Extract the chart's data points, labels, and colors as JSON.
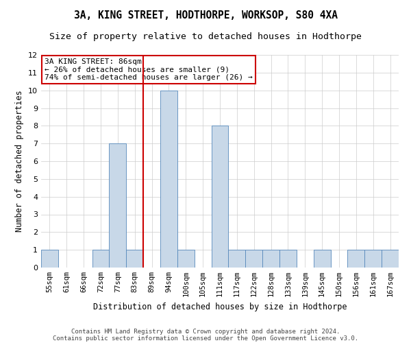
{
  "title": "3A, KING STREET, HODTHORPE, WORKSOP, S80 4XA",
  "subtitle": "Size of property relative to detached houses in Hodthorpe",
  "xlabel": "Distribution of detached houses by size in Hodthorpe",
  "ylabel": "Number of detached properties",
  "categories": [
    "55sqm",
    "61sqm",
    "66sqm",
    "72sqm",
    "77sqm",
    "83sqm",
    "89sqm",
    "94sqm",
    "100sqm",
    "105sqm",
    "111sqm",
    "117sqm",
    "122sqm",
    "128sqm",
    "133sqm",
    "139sqm",
    "145sqm",
    "150sqm",
    "156sqm",
    "161sqm",
    "167sqm"
  ],
  "values": [
    1,
    0,
    0,
    1,
    7,
    1,
    0,
    10,
    1,
    0,
    8,
    1,
    1,
    1,
    1,
    0,
    1,
    0,
    1,
    1,
    1
  ],
  "bar_color": "#c8d8e8",
  "bar_edge_color": "#5588bb",
  "ylim": [
    0,
    12
  ],
  "yticks": [
    0,
    1,
    2,
    3,
    4,
    5,
    6,
    7,
    8,
    9,
    10,
    11,
    12
  ],
  "annotation_text": "3A KING STREET: 86sqm\n← 26% of detached houses are smaller (9)\n74% of semi-detached houses are larger (26) →",
  "annotation_box_color": "#ffffff",
  "annotation_box_edgecolor": "#cc0000",
  "red_line_after_index": 5,
  "footnote_line1": "Contains HM Land Registry data © Crown copyright and database right 2024.",
  "footnote_line2": "Contains public sector information licensed under the Open Government Licence v3.0.",
  "bg_color": "#ffffff",
  "grid_color": "#cccccc"
}
